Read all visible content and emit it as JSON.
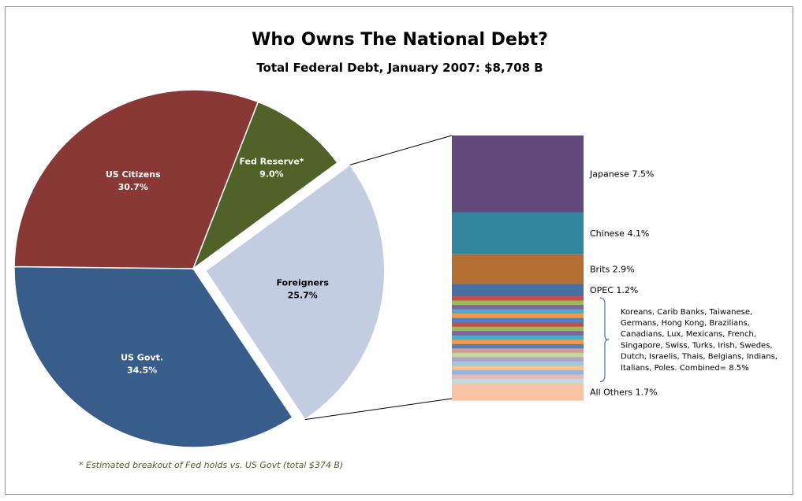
{
  "chart_data": {
    "type": "pie",
    "title": "Who Owns The National Debt?",
    "subtitle": "Total Federal Debt, January 2007:  $8,708 B",
    "pie": {
      "slices": [
        {
          "name": "Foreigners",
          "value": 25.7,
          "label": "25.7%",
          "color": "#c3cde2",
          "label_color": "#000000",
          "exploded": true
        },
        {
          "name": "US Govt.",
          "value": 34.5,
          "label": "34.5%",
          "color": "#385d8a",
          "label_color": "#ffffff",
          "exploded": false
        },
        {
          "name": "US Citizens",
          "value": 30.7,
          "label": "30.7%",
          "color": "#893835",
          "label_color": "#ffffff",
          "exploded": false
        },
        {
          "name": "Fed Reserve*",
          "value": 9.0,
          "label": "9.0%",
          "color": "#4f6228",
          "label_color": "#ffffff",
          "exploded": false
        }
      ]
    },
    "breakout": {
      "type": "stacked-bar",
      "total": 25.7,
      "segments": [
        {
          "name": "Japanese",
          "value": 7.5,
          "color": "#5f4a7b",
          "label": "Japanese 7.5%"
        },
        {
          "name": "Chinese",
          "value": 4.1,
          "color": "#31859c",
          "label": "Chinese 4.1%"
        },
        {
          "name": "Brits",
          "value": 2.9,
          "color": "#b66d31",
          "label": "Brits 2.9%"
        },
        {
          "name": "OPEC",
          "value": 1.2,
          "color": "#4a6fa5",
          "label": "OPEC 1.2%"
        },
        {
          "name": "Others combined",
          "value": 8.5,
          "multicolor": [
            "#c0504d",
            "#9bbb59",
            "#8064a2",
            "#4bacc6",
            "#f79646",
            "#4f81bd",
            "#c0504d",
            "#9bbb59",
            "#8064a2",
            "#4bacc6",
            "#f79646",
            "#4f81bd",
            "#d99694",
            "#c3d69b",
            "#b3a2c7",
            "#93cddd",
            "#fac090",
            "#95b3d7",
            "#e6b9b8",
            "#b7dee8"
          ]
        },
        {
          "name": "All Others",
          "value": 1.7,
          "color": "#fac4a4",
          "label": "All Others  1.7%"
        }
      ],
      "bracket_lines": [
        "Koreans, Carib Banks, Taiwanese,",
        "Germans, Hong Kong, Brazilians,",
        "Canadians, Lux, Mexicans, French,",
        "Singapore, Swiss, Turks,  Irish, Swedes,",
        "Dutch, Israelis, Thais, Belgians, Indians,",
        "Italians, Poles. Combined= 8.5%"
      ]
    },
    "footnote": "* Estimated  breakout of Fed holds vs. US Govt (total $374 B)"
  }
}
